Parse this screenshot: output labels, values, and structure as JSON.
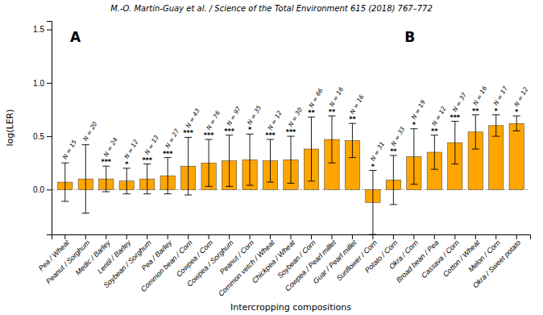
{
  "chart_data": {
    "type": "bar",
    "title": "M.-O. Martin-Guay et al. / Science of the Total Environment 615 (2018) 767–772",
    "xlabel": "Intercropping compositions",
    "ylabel": "log(LER)",
    "categories": [
      "Pea / Wheat",
      "Peanut / Sorghum",
      "Medic / Barley",
      "Lentil / Barley",
      "Soybean / Sorghum",
      "Pea / Barley",
      "Common bean / Corn",
      "Cowpea / Corn",
      "Cowpea / Sorghum",
      "Peanut / Corn",
      "Common vetch / Wheat",
      "Chickpea / Wheat",
      "Soybean / Corn",
      "Cowpea / Pearl millet",
      "Guar / Pearl millet",
      "Sunflower / Corn",
      "Potato / Corn",
      "Okra / Corn",
      "Broad bean / Pea",
      "Cassava / Corn",
      "Cotton / Wheat",
      "Melon / Corn",
      "Okra / Sweet potato"
    ],
    "values": [
      0.07,
      0.1,
      0.1,
      0.08,
      0.1,
      0.13,
      0.22,
      0.25,
      0.27,
      0.28,
      0.27,
      0.28,
      0.38,
      0.47,
      0.46,
      -0.12,
      0.09,
      0.31,
      0.35,
      0.44,
      0.54,
      0.6,
      0.62
    ],
    "errors": [
      0.18,
      0.32,
      0.12,
      0.12,
      0.14,
      0.17,
      0.27,
      0.22,
      0.24,
      0.24,
      0.2,
      0.22,
      0.3,
      0.22,
      0.16,
      0.3,
      0.23,
      0.26,
      0.16,
      0.2,
      0.16,
      0.1,
      0.07
    ],
    "significance": [
      null,
      null,
      "***",
      "*",
      "***",
      "***",
      "***",
      "***",
      "***",
      "*",
      "***",
      "***",
      "**",
      "**",
      "**",
      "*",
      "**",
      "*",
      "**",
      "***",
      "**",
      "*",
      "*"
    ],
    "n_labels": [
      "N = 15",
      "N = 20",
      "N = 24",
      "N = 12",
      "N = 13",
      "N = 27",
      "N = 43",
      "N = 76",
      "N = 97",
      "N = 35",
      "N = 12",
      "N = 30",
      "N = 66",
      "N = 16",
      "N = 16",
      "N = 31",
      "N = 33",
      "N = 19",
      "N = 12",
      "N = 37",
      "N = 16",
      "N = 17",
      "N = 12"
    ],
    "color": "#FFA500",
    "annotations": [
      {
        "text": "A",
        "x": 0.5,
        "y": 1.42
      },
      {
        "text": "B",
        "x": 16.8,
        "y": 1.42
      }
    ],
    "hlines": [
      0
    ],
    "ylim": [
      -0.42,
      1.58
    ],
    "yticks": [
      {
        "value": 0.0,
        "label": "0.0"
      },
      0.5,
      {
        "value": 1.0,
        "label": "1.0"
      },
      1.5
    ]
  }
}
